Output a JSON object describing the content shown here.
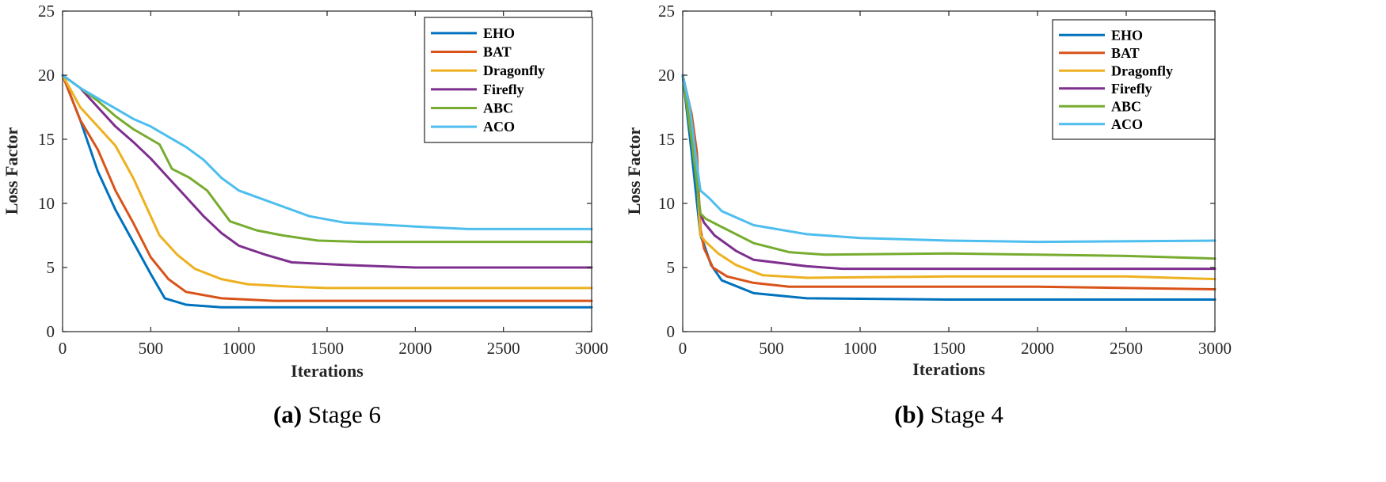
{
  "colors": {
    "EHO": "#0072BD",
    "BAT": "#D95319",
    "Dragonfly": "#EDB120",
    "Firefly": "#7E2F8E",
    "ABC": "#77AC30",
    "ACO": "#4DBEEE"
  },
  "chart_data": [
    {
      "type": "line",
      "caption_letter": "(a)",
      "caption_text": "Stage 6",
      "xlabel": "Iterations",
      "ylabel": "Loss Factor",
      "xlim": [
        0,
        3000
      ],
      "ylim": [
        0,
        25
      ],
      "xticks": [
        0,
        500,
        1000,
        1500,
        2000,
        2500,
        3000
      ],
      "yticks": [
        0,
        5,
        10,
        15,
        20,
        25
      ],
      "legend_position": "top-right",
      "series": [
        {
          "name": "EHO",
          "x": [
            0,
            100,
            200,
            300,
            400,
            500,
            580,
            700,
            900,
            1200,
            2000,
            3000
          ],
          "y": [
            20,
            16.5,
            12.5,
            9.5,
            7,
            4.5,
            2.6,
            2.1,
            1.9,
            1.9,
            1.9,
            1.9
          ]
        },
        {
          "name": "BAT",
          "x": [
            0,
            100,
            200,
            300,
            400,
            500,
            600,
            700,
            900,
            1200,
            2000,
            3000
          ],
          "y": [
            20,
            16.5,
            14.2,
            11,
            8.5,
            5.8,
            4.1,
            3.1,
            2.6,
            2.4,
            2.4,
            2.4
          ]
        },
        {
          "name": "Dragonfly",
          "x": [
            0,
            100,
            200,
            300,
            400,
            500,
            550,
            650,
            750,
            900,
            1050,
            1300,
            1500,
            2000,
            3000
          ],
          "y": [
            20,
            17.5,
            16,
            14.5,
            12,
            9,
            7.5,
            6,
            4.9,
            4.1,
            3.7,
            3.5,
            3.4,
            3.4,
            3.4
          ]
        },
        {
          "name": "Firefly",
          "x": [
            0,
            100,
            200,
            300,
            400,
            500,
            600,
            700,
            800,
            900,
            1000,
            1150,
            1300,
            1600,
            2000,
            3000
          ],
          "y": [
            20,
            19,
            17.5,
            16,
            14.8,
            13.5,
            12,
            10.5,
            9,
            7.7,
            6.7,
            6,
            5.4,
            5.2,
            5,
            5
          ]
        },
        {
          "name": "ABC",
          "x": [
            0,
            100,
            200,
            300,
            400,
            550,
            620,
            720,
            820,
            950,
            1100,
            1250,
            1450,
            1700,
            2000,
            3000
          ],
          "y": [
            20,
            19,
            18,
            16.8,
            15.8,
            14.6,
            12.7,
            12,
            11,
            8.6,
            7.9,
            7.5,
            7.1,
            7,
            7,
            7
          ]
        },
        {
          "name": "ACO",
          "x": [
            0,
            100,
            200,
            300,
            400,
            500,
            600,
            700,
            800,
            900,
            1000,
            1200,
            1400,
            1600,
            2000,
            2300,
            3000
          ],
          "y": [
            20,
            19,
            18.2,
            17.4,
            16.6,
            16,
            15.2,
            14.4,
            13.4,
            12,
            11,
            10,
            9,
            8.5,
            8.2,
            8,
            8
          ]
        }
      ]
    },
    {
      "type": "line",
      "caption_letter": "(b)",
      "caption_text": "Stage 4",
      "xlabel": "Iterations",
      "ylabel": "Loss Factor",
      "xlim": [
        0,
        3000
      ],
      "ylim": [
        0,
        25
      ],
      "xticks": [
        0,
        500,
        1000,
        1500,
        2000,
        2500,
        3000
      ],
      "yticks": [
        0,
        5,
        10,
        15,
        20,
        25
      ],
      "legend_position": "top-right",
      "series": [
        {
          "name": "EHO",
          "x": [
            0,
            50,
            100,
            120,
            160,
            220,
            400,
            700,
            1500,
            3000
          ],
          "y": [
            20,
            14,
            7.5,
            6.8,
            5.2,
            4,
            3,
            2.6,
            2.5,
            2.5
          ]
        },
        {
          "name": "BAT",
          "x": [
            0,
            50,
            80,
            100,
            120,
            170,
            250,
            400,
            600,
            1500,
            2000,
            3000
          ],
          "y": [
            20,
            17,
            14,
            8,
            6.5,
            5,
            4.3,
            3.8,
            3.5,
            3.5,
            3.5,
            3.3
          ]
        },
        {
          "name": "Dragonfly",
          "x": [
            0,
            50,
            80,
            100,
            130,
            200,
            300,
            450,
            700,
            1500,
            2000,
            2500,
            3000
          ],
          "y": [
            20,
            16,
            12,
            7.5,
            7,
            6.1,
            5.2,
            4.4,
            4.2,
            4.3,
            4.3,
            4.3,
            4.1
          ]
        },
        {
          "name": "Firefly",
          "x": [
            0,
            50,
            100,
            120,
            180,
            300,
            400,
            700,
            900,
            1500,
            2000,
            3000
          ],
          "y": [
            20,
            15,
            9.2,
            8.5,
            7.5,
            6.3,
            5.6,
            5.1,
            4.9,
            4.9,
            4.9,
            4.9
          ]
        },
        {
          "name": "ABC",
          "x": [
            0,
            50,
            100,
            130,
            200,
            400,
            600,
            800,
            1500,
            2000,
            2500,
            3000
          ],
          "y": [
            20,
            15,
            9.2,
            8.8,
            8.3,
            6.9,
            6.2,
            6,
            6.1,
            6,
            5.9,
            5.7
          ]
        },
        {
          "name": "ACO",
          "x": [
            0,
            40,
            80,
            100,
            150,
            220,
            400,
            700,
            1000,
            1500,
            2000,
            3000
          ],
          "y": [
            20,
            17.5,
            13,
            11,
            10.4,
            9.4,
            8.3,
            7.6,
            7.3,
            7.1,
            7,
            7.1
          ]
        }
      ]
    }
  ]
}
